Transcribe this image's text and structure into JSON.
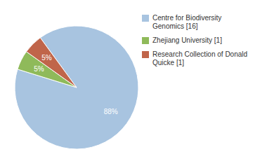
{
  "chart_data": {
    "type": "pie",
    "categories": [
      "Centre for Biodiversity\nGenomics [16]",
      "Zhejiang University [1]",
      "Research Collection of Donald\nQuicke [1]"
    ],
    "values": [
      88,
      5,
      5
    ],
    "value_labels": [
      "88%",
      "5%",
      "5%"
    ],
    "colors": [
      "#a8c4e0",
      "#8fba5a",
      "#c0654a"
    ],
    "data_labels": true,
    "legend": "right"
  }
}
